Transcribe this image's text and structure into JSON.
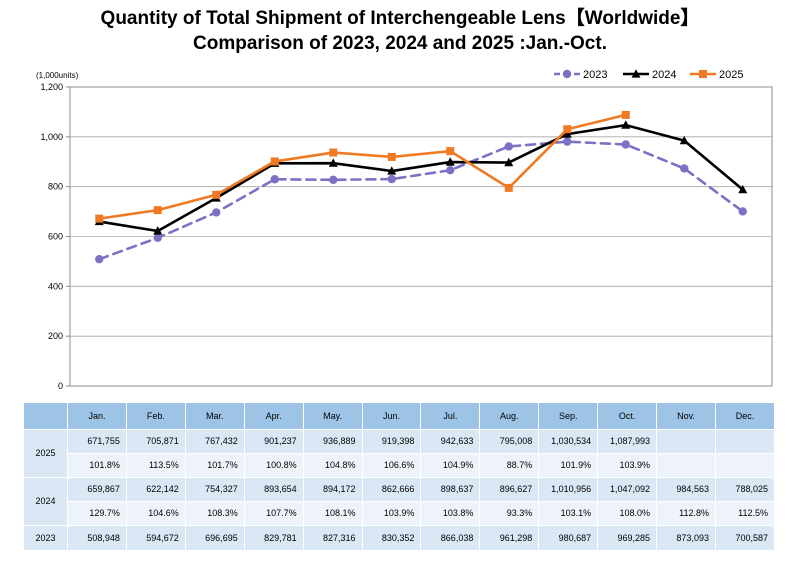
{
  "titles": {
    "line1": "Quantity of Total Shipment of Interchengeable Lens【Worldwide】",
    "line2": "Comparison of 2023, 2024 and 2025 :Jan.-Oct."
  },
  "chart_data": {
    "type": "line",
    "unit_label": "(1,000units)",
    "categories": [
      "Jan.",
      "Feb.",
      "Mar.",
      "Apr.",
      "May.",
      "Jun.",
      "Jul.",
      "Aug.",
      "Sep.",
      "Oct.",
      "Nov.",
      "Dec."
    ],
    "ylim": [
      0,
      1200
    ],
    "yticks": [
      0,
      200,
      400,
      600,
      800,
      1000,
      1200
    ],
    "ytick_labels": [
      "0",
      "200",
      "400",
      "600",
      "800",
      "1,000",
      "1,200"
    ],
    "grid": true,
    "legend_position": "top-right",
    "series": [
      {
        "name": "2023",
        "color": "#7b72c6",
        "style": "dashed",
        "marker": "circle",
        "values": [
          508.948,
          594.672,
          696.695,
          829.781,
          827.316,
          830.352,
          866.038,
          961.298,
          980.687,
          969.285,
          873.093,
          700.587
        ]
      },
      {
        "name": "2024",
        "color": "#000000",
        "style": "solid",
        "marker": "triangle",
        "values": [
          659.867,
          622.142,
          754.327,
          893.654,
          894.172,
          862.666,
          898.637,
          896.627,
          1010.956,
          1047.092,
          984.563,
          788.025
        ]
      },
      {
        "name": "2025",
        "color": "#f07a24",
        "style": "solid",
        "marker": "square",
        "values": [
          671.755,
          705.871,
          767.432,
          901.237,
          936.889,
          919.398,
          942.633,
          795.008,
          1030.534,
          1087.993,
          null,
          null
        ]
      }
    ]
  },
  "table": {
    "months": [
      "Jan.",
      "Feb.",
      "Mar.",
      "Apr.",
      "May.",
      "Jun.",
      "Jul.",
      "Aug.",
      "Sep.",
      "Oct.",
      "Nov.",
      "Dec."
    ],
    "rows": [
      {
        "year": "2025",
        "values": [
          "671,755",
          "705,871",
          "767,432",
          "901,237",
          "936,889",
          "919,398",
          "942,633",
          "795,008",
          "1,030,534",
          "1,087,993",
          "",
          ""
        ],
        "pct": [
          "101.8%",
          "113.5%",
          "101.7%",
          "100.8%",
          "104.8%",
          "106.6%",
          "104.9%",
          "88.7%",
          "101.9%",
          "103.9%",
          "",
          ""
        ]
      },
      {
        "year": "2024",
        "values": [
          "659,867",
          "622,142",
          "754,327",
          "893,654",
          "894,172",
          "862,666",
          "898,637",
          "896,627",
          "1,010,956",
          "1,047,092",
          "984,563",
          "788,025"
        ],
        "pct": [
          "129.7%",
          "104.6%",
          "108.3%",
          "107.7%",
          "108.1%",
          "103.9%",
          "103.8%",
          "93.3%",
          "103.1%",
          "108.0%",
          "112.8%",
          "112.5%"
        ]
      },
      {
        "year": "2023",
        "values": [
          "508,948",
          "594,672",
          "696,695",
          "829,781",
          "827,316",
          "830,352",
          "866,038",
          "961,298",
          "980,687",
          "969,285",
          "873,093",
          "700,587"
        ]
      }
    ]
  }
}
